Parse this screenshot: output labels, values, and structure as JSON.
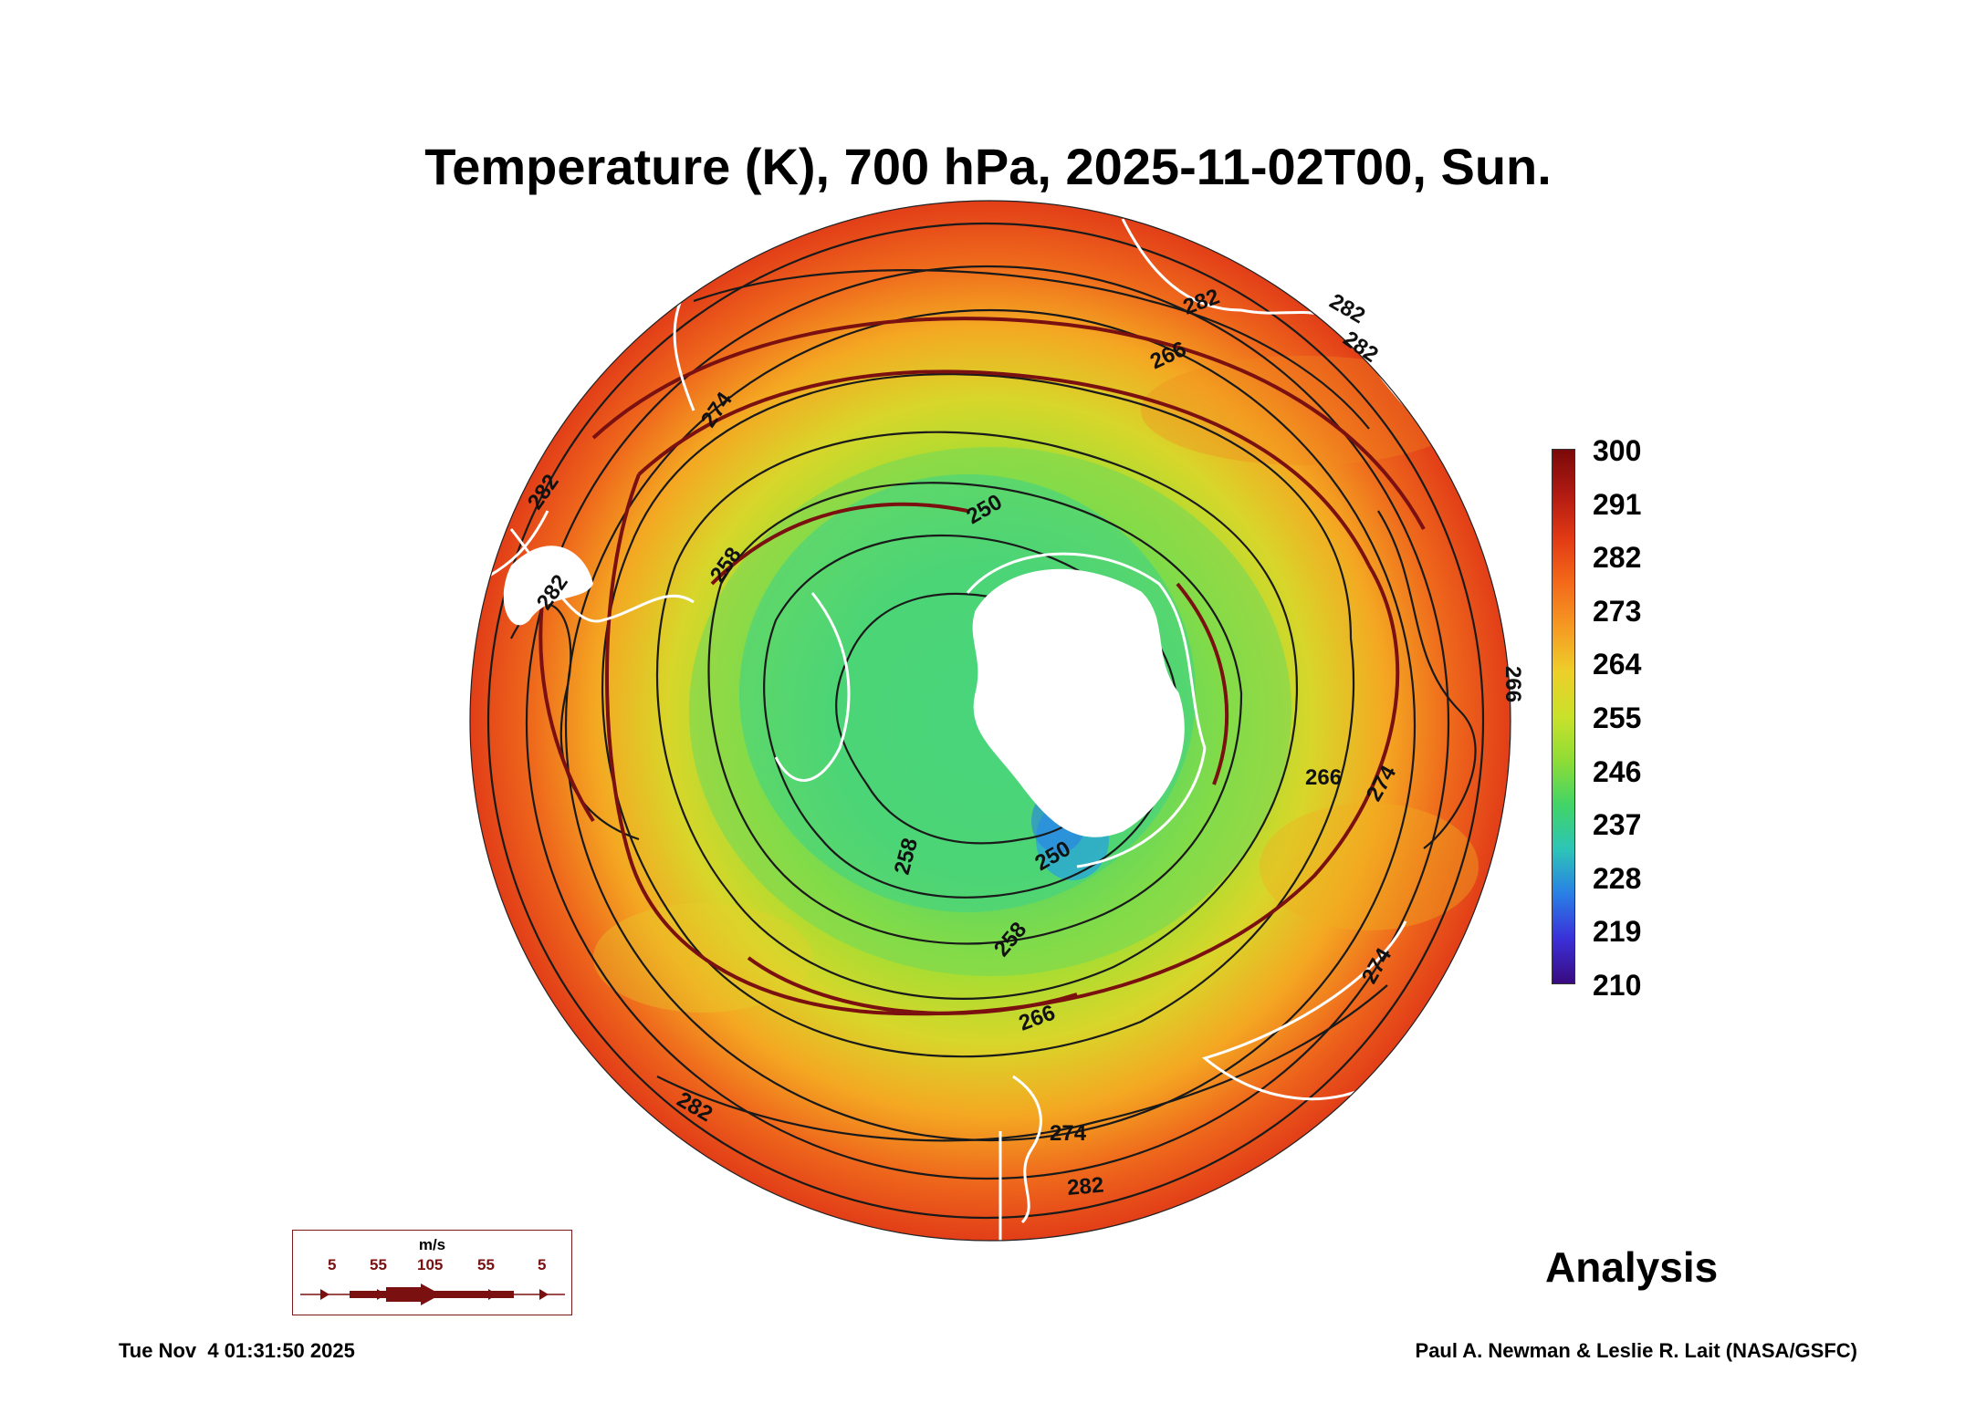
{
  "title": "Temperature (K), 700 hPa, 2025-11-02T00, Sun.",
  "colorbar": {
    "labels": [
      "300",
      "291",
      "282",
      "273",
      "264",
      "255",
      "246",
      "237",
      "228",
      "219",
      "210"
    ],
    "colors": [
      "#7a0a0a",
      "#b11a12",
      "#e23a14",
      "#f46a1a",
      "#f59a22",
      "#eecf2a",
      "#c9e12a",
      "#8edc36",
      "#41d468",
      "#2cc4b8",
      "#2a7ee6",
      "#3a30d8",
      "#3a0a80"
    ]
  },
  "contour_labels": [
    "282",
    "282",
    "274",
    "266",
    "258",
    "250",
    "266",
    "274",
    "282",
    "282",
    "258",
    "250",
    "258",
    "266",
    "274",
    "282",
    "282",
    "266",
    "274",
    "282"
  ],
  "legend": {
    "unit": "m/s",
    "speeds": [
      "5",
      "55",
      "105",
      "55",
      "5"
    ]
  },
  "annotation": "Analysis",
  "footer": {
    "timestamp": "Tue Nov  4 01:31:50 2025",
    "credit": "Paul A. Newman & Leslie R. Lait (NASA/GSFC)"
  },
  "colors": {
    "outer": "#e8431a",
    "mid": "#f49a22",
    "ring": "#d8d62a",
    "inner": "#8fdc3a",
    "polar": "#3fd48a",
    "cold": "#2a7ee6",
    "contour": "#1a1a1a",
    "streamline": "#7a1010",
    "coast": "#ffffff"
  }
}
